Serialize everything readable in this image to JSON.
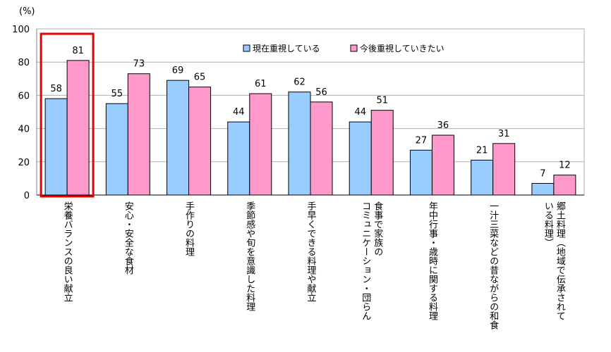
{
  "chart_data": {
    "type": "bar",
    "unit_label": "(%)",
    "ylim": [
      0,
      100
    ],
    "yticks": [
      0,
      20,
      40,
      60,
      80,
      100
    ],
    "grid": true,
    "legend_position": "top-right",
    "categories": [
      "栄養バランスの良い献立",
      "安心・安全な食材",
      "手作りの料理",
      "季節感や旬を意識した料理",
      "手早くできる料理や献立",
      "食事で家族のコミュニケーション・団らん",
      "年中行事・歳時に関する料理",
      "一汁三菜などの昔ながらの和食",
      "郷土料理（地域で伝承されている料理）"
    ],
    "category_label_lines": [
      [
        "栄養バランスの良い献立"
      ],
      [
        "安心・安全な食材"
      ],
      [
        "手作りの料理"
      ],
      [
        "季節感や旬を意識した料理"
      ],
      [
        "手早くできる料理や献立"
      ],
      [
        "食事で家族の",
        "コミュニケーション・団らん"
      ],
      [
        "年中行事・歳時に関する料理"
      ],
      [
        "一汁三菜などの昔ながらの和食"
      ],
      [
        "郷土料理（地域で伝承されて",
        "いる料理）"
      ]
    ],
    "series": [
      {
        "name": "現在重視している",
        "color": "#99ccff",
        "values": [
          58,
          55,
          69,
          44,
          62,
          44,
          27,
          21,
          7
        ]
      },
      {
        "name": "今後重視していきたい",
        "color": "#ff99cc",
        "values": [
          81,
          73,
          65,
          61,
          56,
          51,
          36,
          31,
          12
        ]
      }
    ],
    "highlight": {
      "category_index": 0,
      "color": "#e60000"
    }
  }
}
